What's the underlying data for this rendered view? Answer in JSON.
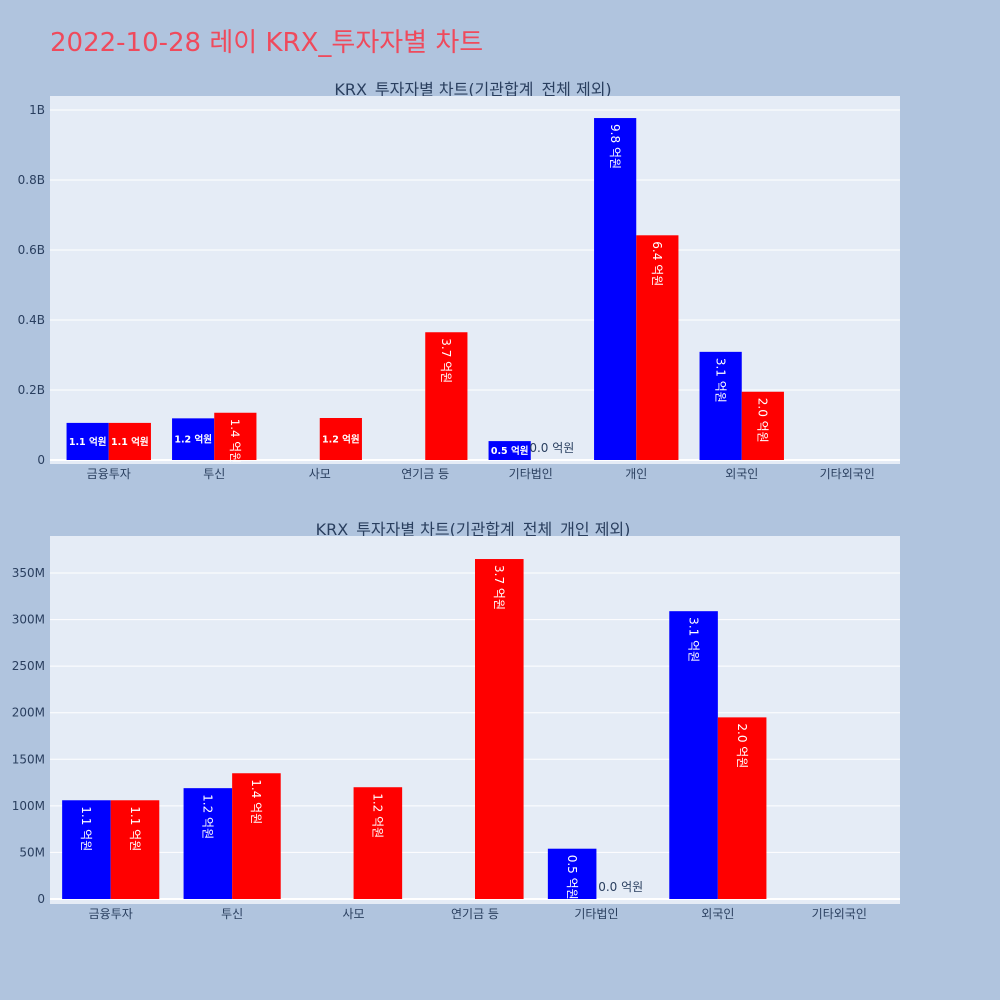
{
  "page": {
    "title": "2022-10-28 레이 KRX_투자자별 차트"
  },
  "colors": {
    "background": "#b0c4de",
    "plot_bg": "#e5ecf6",
    "series_a": "#0000ff",
    "series_b": "#ff0000",
    "title": "#ef4a5c",
    "text": "#2a3f5f"
  },
  "chart_data": [
    {
      "type": "bar",
      "title": "KRX_투자자별 차트(기관합계_전체 제외)",
      "categories": [
        "금융투자",
        "투신",
        "사모",
        "연기금 등",
        "기타법인",
        "개인",
        "외국인",
        "기타외국인"
      ],
      "series": [
        {
          "color": "#0000ff",
          "values": [
            106000000,
            119000000,
            0,
            0,
            54000000,
            977000000,
            309000000,
            0
          ],
          "labels": [
            "1.1 억원",
            "1.2 억원",
            "",
            "",
            "0.5 억원",
            "9.8 억원",
            "3.1 억원",
            ""
          ]
        },
        {
          "color": "#ff0000",
          "values": [
            106000000,
            135000000,
            120000000,
            365000000,
            0,
            642000000,
            195000000,
            0
          ],
          "labels": [
            "1.1 억원",
            "1.4 억원",
            "1.2 억원",
            "3.7 억원",
            "0.0 억원",
            "6.4 억원",
            "2.0 억원",
            ""
          ]
        }
      ],
      "y_range": [
        0,
        1000000000
      ],
      "y_ticks": [
        {
          "value": 0,
          "label": "0"
        },
        {
          "value": 200000000,
          "label": "0.2B"
        },
        {
          "value": 400000000,
          "label": "0.4B"
        },
        {
          "value": 600000000,
          "label": "0.6B"
        },
        {
          "value": 800000000,
          "label": "0.8B"
        },
        {
          "value": 1000000000,
          "label": "1B"
        }
      ],
      "grid": true,
      "legend": "none"
    },
    {
      "type": "bar",
      "title": "KRX_투자자별 차트(기관합계_전체_개인 제외)",
      "categories": [
        "금융투자",
        "투신",
        "사모",
        "연기금 등",
        "기타법인",
        "외국인",
        "기타외국인"
      ],
      "series": [
        {
          "color": "#0000ff",
          "values": [
            106000000,
            119000000,
            0,
            0,
            54000000,
            309000000,
            0
          ],
          "labels": [
            "1.1 억원",
            "1.2 억원",
            "",
            "",
            "0.5 억원",
            "3.1 억원",
            ""
          ]
        },
        {
          "color": "#ff0000",
          "values": [
            106000000,
            135000000,
            120000000,
            365000000,
            0,
            195000000,
            0
          ],
          "labels": [
            "1.1 억원",
            "1.4 억원",
            "1.2 억원",
            "3.7 억원",
            "0.0 억원",
            "2.0 억원",
            ""
          ]
        }
      ],
      "y_range": [
        0,
        350000000
      ],
      "y_ticks": [
        {
          "value": 0,
          "label": "0"
        },
        {
          "value": 50000000,
          "label": "50M"
        },
        {
          "value": 100000000,
          "label": "100M"
        },
        {
          "value": 150000000,
          "label": "150M"
        },
        {
          "value": 200000000,
          "label": "200M"
        },
        {
          "value": 250000000,
          "label": "250M"
        },
        {
          "value": 300000000,
          "label": "300M"
        },
        {
          "value": 350000000,
          "label": "350M"
        }
      ],
      "grid": true,
      "legend": "none"
    }
  ]
}
